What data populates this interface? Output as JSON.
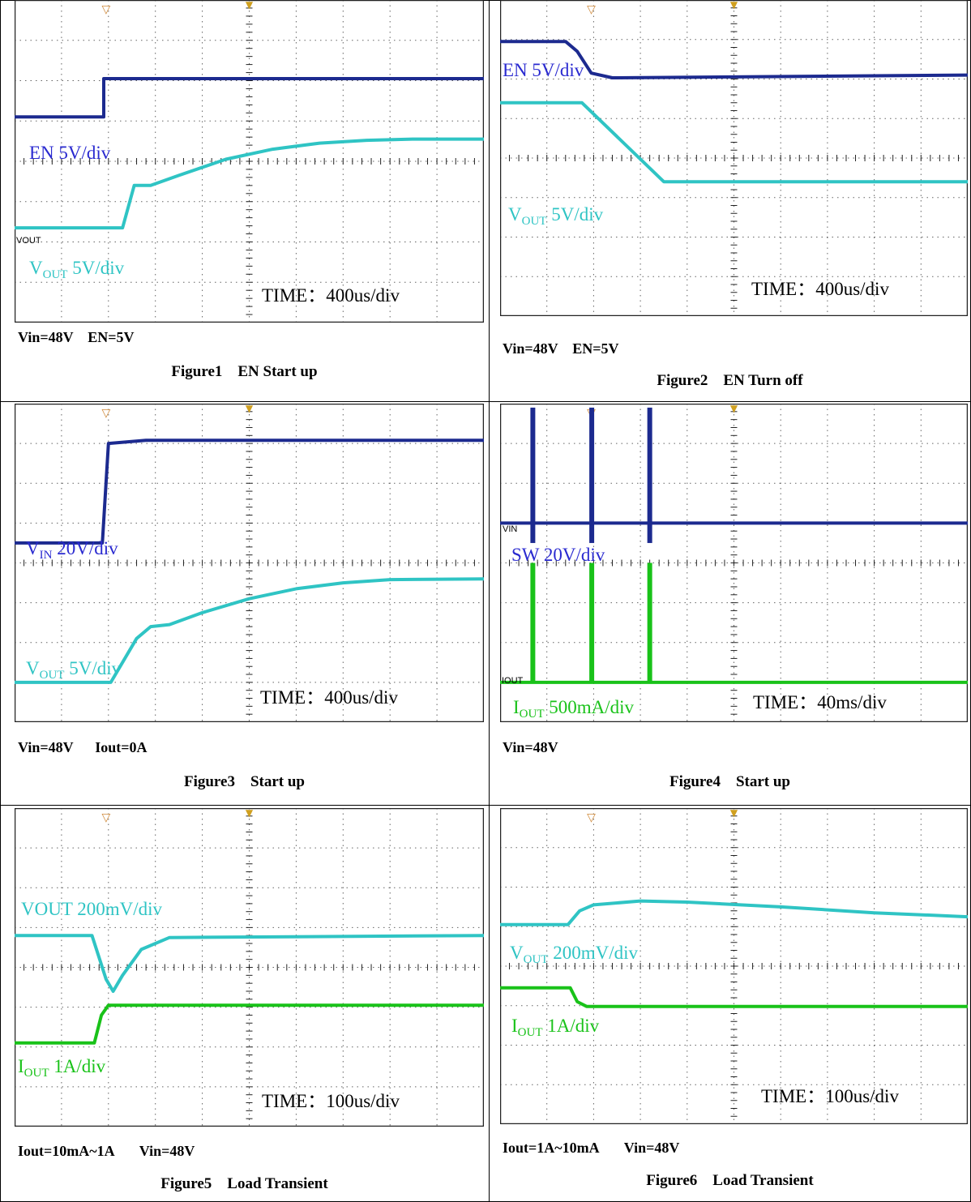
{
  "colors": {
    "navy": "#1c2a8f",
    "cyan": "#2fc4c4",
    "green": "#19c219",
    "grid": "#222222",
    "label_blue": "#2a2ad0"
  },
  "chart_data": [
    {
      "id": "fig1",
      "type": "line",
      "title": "Figure1    EN Start up",
      "conditions": "Vin=48V    EN=5V",
      "time_label": "TIME：400us/div",
      "tags": [
        "VOUT"
      ],
      "series": [
        {
          "name": "EN 5V/div",
          "color": "navy",
          "points": [
            [
              0,
              2.9
            ],
            [
              1.9,
              2.9
            ],
            [
              1.9,
              1.95
            ],
            [
              10,
              1.95
            ]
          ]
        },
        {
          "name": "VOUT 5V/div",
          "color": "cyan",
          "points": [
            [
              0,
              5.65
            ],
            [
              2.3,
              5.65
            ],
            [
              2.55,
              4.6
            ],
            [
              2.9,
              4.6
            ],
            [
              3.5,
              4.35
            ],
            [
              4.5,
              3.95
            ],
            [
              5.5,
              3.7
            ],
            [
              6.5,
              3.55
            ],
            [
              7.5,
              3.48
            ],
            [
              8.5,
              3.45
            ],
            [
              10,
              3.45
            ]
          ]
        }
      ],
      "labels": [
        {
          "text": "EN 5V/div",
          "color": "label_blue"
        },
        {
          "text": "V",
          "sub": "OUT",
          "rest": " 5V/div",
          "color": "cyan"
        }
      ]
    },
    {
      "id": "fig2",
      "type": "line",
      "title": "Figure2    EN Turn off",
      "conditions": "Vin=48V    EN=5V",
      "time_label": "TIME：400us/div",
      "tags": [],
      "series": [
        {
          "name": "EN 5V/div",
          "color": "navy",
          "points": [
            [
              0,
              1.05
            ],
            [
              1.4,
              1.05
            ],
            [
              1.65,
              1.3
            ],
            [
              1.95,
              1.85
            ],
            [
              2.4,
              1.97
            ],
            [
              10,
              1.9
            ]
          ]
        },
        {
          "name": "VOUT 5V/div",
          "color": "cyan",
          "points": [
            [
              0,
              2.6
            ],
            [
              1.75,
              2.6
            ],
            [
              3.5,
              4.6
            ],
            [
              10,
              4.6
            ]
          ]
        }
      ],
      "labels": [
        {
          "text": "EN 5V/div",
          "color": "label_blue"
        },
        {
          "text": "V",
          "sub": "OUT",
          "rest": " 5V/div",
          "color": "cyan"
        }
      ]
    },
    {
      "id": "fig3",
      "type": "line",
      "title": "Figure3    Start up",
      "conditions": "Vin=48V      Iout=0A",
      "time_label": "TIME：400us/div",
      "tags": [],
      "series": [
        {
          "name": "VIN 20V/div",
          "color": "navy",
          "points": [
            [
              0,
              3.5
            ],
            [
              1.87,
              3.5
            ],
            [
              2.0,
              1.0
            ],
            [
              2.8,
              0.92
            ],
            [
              10,
              0.92
            ]
          ]
        },
        {
          "name": "VOUT 5V/div",
          "color": "cyan",
          "points": [
            [
              0,
              7.0
            ],
            [
              2.05,
              7.0
            ],
            [
              2.6,
              5.9
            ],
            [
              2.9,
              5.6
            ],
            [
              3.3,
              5.55
            ],
            [
              4.0,
              5.25
            ],
            [
              5.0,
              4.9
            ],
            [
              6.0,
              4.65
            ],
            [
              7.0,
              4.5
            ],
            [
              8.0,
              4.42
            ],
            [
              10,
              4.4
            ]
          ]
        }
      ],
      "labels": [
        {
          "text": "V",
          "sub": "IN",
          "rest": " 20V/div",
          "color": "label_blue"
        },
        {
          "text": "V",
          "sub": "OUT",
          "rest": " 5V/div",
          "color": "cyan"
        }
      ]
    },
    {
      "id": "fig4",
      "type": "line",
      "title": "Figure4    Start up",
      "conditions": "Vin=48V",
      "time_label": "TIME：40ms/div",
      "tags": [
        "VIN",
        "IOUT"
      ],
      "series": [
        {
          "name": "SW 20V/div",
          "color": "navy",
          "pulses_x": [
            0.7,
            1.96,
            3.2
          ],
          "level": 3.0,
          "top": 0.1,
          "bottom": 3.5
        },
        {
          "name": "IOUT 500mA/div",
          "color": "green",
          "pulses_x": [
            0.7,
            1.96,
            3.2
          ],
          "level": 7.0,
          "top": 4.0
        }
      ],
      "labels": [
        {
          "text": "SW 20V/div",
          "color": "label_blue"
        },
        {
          "text": "I",
          "sub": "OUT",
          "rest": " 500mA/div",
          "color": "green"
        }
      ]
    },
    {
      "id": "fig5",
      "type": "line",
      "title": "Figure5    Load Transient",
      "conditions": "Iout=10mA~1A       Vin=48V",
      "time_label": "TIME：100us/div",
      "tags": [],
      "series": [
        {
          "name": "VOUT 200mV/div",
          "color": "cyan",
          "points": [
            [
              0,
              3.2
            ],
            [
              1.65,
              3.2
            ],
            [
              1.95,
              4.3
            ],
            [
              2.1,
              4.6
            ],
            [
              2.3,
              4.2
            ],
            [
              2.7,
              3.55
            ],
            [
              3.3,
              3.25
            ],
            [
              10,
              3.2
            ]
          ]
        },
        {
          "name": "IOUT 1A/div",
          "color": "green",
          "points": [
            [
              0,
              5.9
            ],
            [
              1.7,
              5.9
            ],
            [
              1.85,
              5.2
            ],
            [
              2.0,
              4.95
            ],
            [
              10,
              4.95
            ]
          ]
        }
      ],
      "labels": [
        {
          "text": "VOUT 200mV/div",
          "color": "cyan"
        },
        {
          "text": "I",
          "sub": "OUT",
          "rest": " 1A/div",
          "color": "green"
        }
      ]
    },
    {
      "id": "fig6",
      "type": "line",
      "title": "Figure6    Load Transient",
      "conditions": "Iout=1A~10mA       Vin=48V",
      "time_label": "TIME：100us/div",
      "tags": [],
      "series": [
        {
          "name": "VOUT 200mV/div",
          "color": "cyan",
          "points": [
            [
              0,
              2.95
            ],
            [
              1.45,
              2.95
            ],
            [
              1.7,
              2.6
            ],
            [
              2.0,
              2.45
            ],
            [
              3.0,
              2.35
            ],
            [
              4.0,
              2.38
            ],
            [
              6.0,
              2.5
            ],
            [
              8.0,
              2.65
            ],
            [
              10,
              2.75
            ]
          ]
        },
        {
          "name": "IOUT 1A/div",
          "color": "green",
          "points": [
            [
              0,
              4.55
            ],
            [
              1.5,
              4.55
            ],
            [
              1.65,
              4.9
            ],
            [
              1.85,
              5.02
            ],
            [
              10,
              5.02
            ]
          ]
        }
      ],
      "labels": [
        {
          "text": "V",
          "sub": "OUT",
          "rest": " 200mV/div",
          "color": "cyan"
        },
        {
          "text": "I",
          "sub": "OUT",
          "rest": " 1A/div",
          "color": "green"
        }
      ]
    }
  ]
}
